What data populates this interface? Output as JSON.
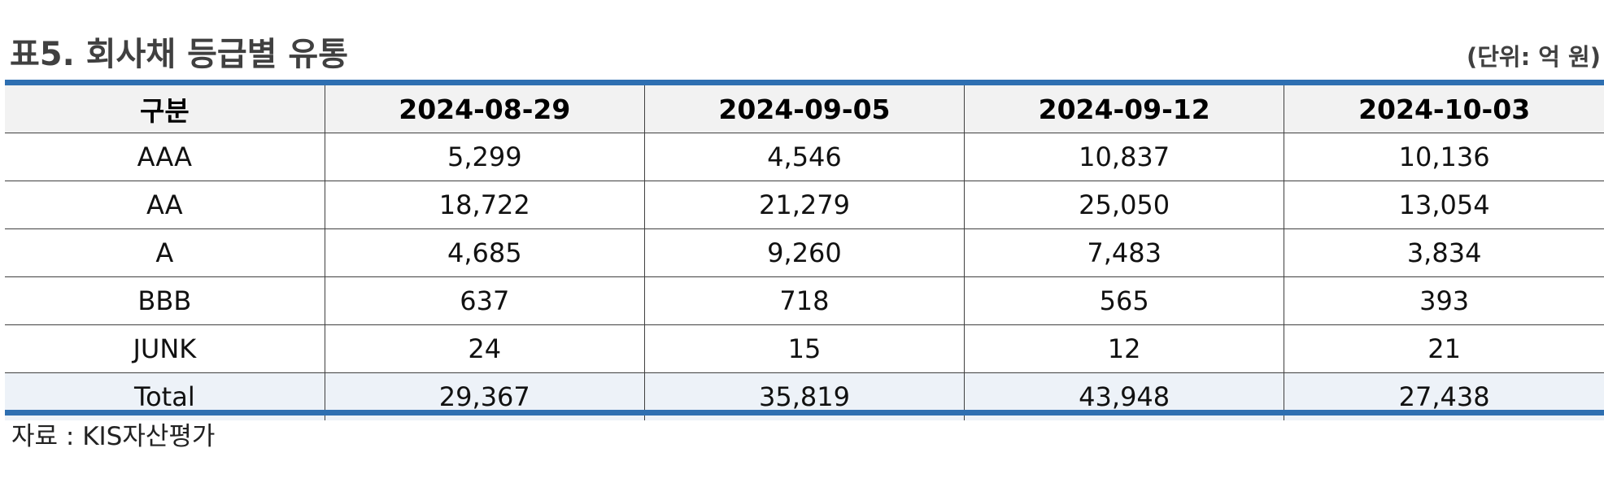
{
  "title": "표5. 회사채 등급별 유통",
  "unit": "(단위: 억 원)",
  "table": {
    "headers": [
      "구분",
      "2024-08-29",
      "2024-09-05",
      "2024-09-12",
      "2024-10-03"
    ],
    "rows": [
      [
        "AAA",
        "5,299",
        "4,546",
        "10,837",
        "10,136"
      ],
      [
        "AA",
        "18,722",
        "21,279",
        "25,050",
        "13,054"
      ],
      [
        "A",
        "4,685",
        "9,260",
        "7,483",
        "3,834"
      ],
      [
        "BBB",
        "637",
        "718",
        "565",
        "393"
      ],
      [
        "JUNK",
        "24",
        "15",
        "12",
        "21"
      ],
      [
        "Total",
        "29,367",
        "35,819",
        "43,948",
        "27,438"
      ]
    ]
  },
  "source": "자료 : KIS자산평가",
  "colors": {
    "rule": "#2e6fb1",
    "header_bg": "#f2f2f2",
    "total_bg": "#edf2f8",
    "title_text": "#404040"
  }
}
